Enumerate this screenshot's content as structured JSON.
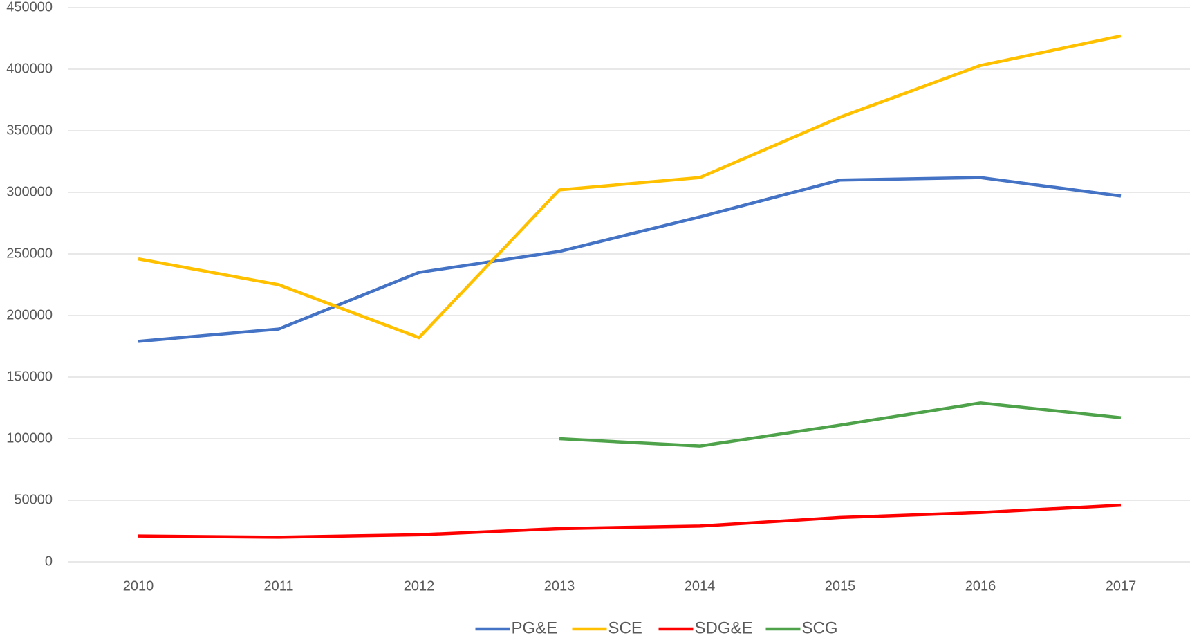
{
  "chart_data": {
    "type": "line",
    "categories": [
      "2010",
      "2011",
      "2012",
      "2013",
      "2014",
      "2015",
      "2016",
      "2017"
    ],
    "series": [
      {
        "name": "PG&E",
        "color": "#4472c4",
        "values": [
          179000,
          189000,
          235000,
          252000,
          280000,
          310000,
          312000,
          297000
        ]
      },
      {
        "name": "SCE",
        "color": "#ffc000",
        "values": [
          246000,
          225000,
          182000,
          302000,
          312000,
          361000,
          403000,
          427000
        ]
      },
      {
        "name": "SDG&E",
        "color": "#ff0000",
        "values": [
          21000,
          20000,
          22000,
          27000,
          29000,
          36000,
          40000,
          46000
        ]
      },
      {
        "name": "SCG",
        "color": "#4ea24a",
        "values": [
          null,
          null,
          null,
          100000,
          94000,
          111000,
          129000,
          117000
        ]
      }
    ],
    "ylim": [
      0,
      450000
    ],
    "yticks": [
      0,
      50000,
      100000,
      150000,
      200000,
      250000,
      300000,
      350000,
      400000,
      450000
    ],
    "grid": true,
    "legend": "bottom"
  }
}
